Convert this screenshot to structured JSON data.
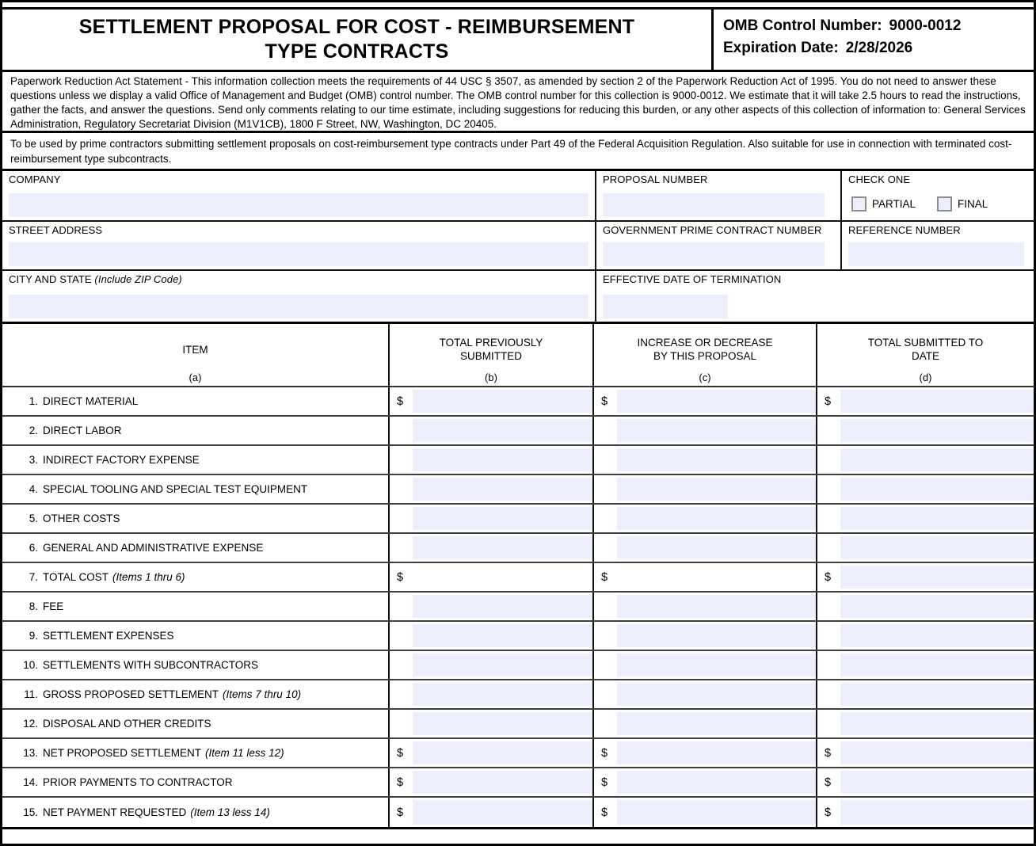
{
  "header": {
    "title": "SETTLEMENT PROPOSAL FOR COST - REIMBURSEMENT\nTYPE CONTRACTS",
    "omb_control_label": "OMB Control Number:",
    "omb_control_value": "9000-0012",
    "expiration_label": "Expiration Date:",
    "expiration_value": "2/28/2026"
  },
  "notices": {
    "paperwork_statement": "Paperwork Reduction Act Statement - This information collection meets the requirements of 44 USC § 3507, as amended by section 2 of the Paperwork Reduction Act of 1995.  You do not need to answer these questions unless we display a valid Office of Management and Budget (OMB) control number.  The OMB control number for this collection is 9000-0012.  We estimate that it will take 2.5 hours to read the instructions, gather the facts, and answer the questions.  Send only comments relating to our time estimate, including suggestions for reducing this burden, or any other aspects of this collection of information to:  General Services Administration, Regulatory Secretariat Division (M1V1CB), 1800 F Street, NW, Washington, DC  20405.",
    "usage_statement": "To be used by prime contractors submitting settlement proposals on cost-reimbursement type contracts under Part 49 of the Federal Acquisition Regulation.  Also suitable for use in connection with terminated cost-reimbursement type subcontracts."
  },
  "fields": {
    "company_label": "COMPANY",
    "company_value": "",
    "proposal_number_label": "PROPOSAL NUMBER",
    "proposal_number_value": "",
    "check_one": {
      "label": "CHECK ONE",
      "partial_label": "PARTIAL",
      "partial_checked": false,
      "final_label": "FINAL",
      "final_checked": false
    },
    "street_address_label": "STREET ADDRESS",
    "street_address_value": "",
    "gov_prime_contract_label": "GOVERNMENT PRIME CONTRACT NUMBER",
    "gov_prime_contract_value": "",
    "reference_number_label": "REFERENCE NUMBER",
    "reference_number_value": "",
    "city_state_label": "CITY AND STATE ",
    "city_state_note": "(Include ZIP Code)",
    "city_state_value": "",
    "effective_date_label": "EFFECTIVE DATE OF TERMINATION",
    "effective_date_value": ""
  },
  "table": {
    "dollar_sign": "$",
    "header": {
      "col_a_title": "ITEM",
      "col_a_sub": "(a)",
      "col_b_title": "TOTAL PREVIOUSLY\nSUBMITTED",
      "col_b_sub": "(b)",
      "col_c_title": "INCREASE OR DECREASE\nBY THIS PROPOSAL",
      "col_c_sub": "(c)",
      "col_d_title": "TOTAL SUBMITTED TO\nDATE",
      "col_d_sub": "(d)"
    },
    "rows": [
      {
        "num": "1.",
        "label": "DIRECT MATERIAL",
        "note": "",
        "dollar": true,
        "fills": [
          true,
          true,
          true
        ],
        "values": [
          "",
          "",
          ""
        ]
      },
      {
        "num": "2.",
        "label": "DIRECT LABOR",
        "note": "",
        "dollar": false,
        "fills": [
          true,
          true,
          true
        ],
        "values": [
          "",
          "",
          ""
        ]
      },
      {
        "num": "3.",
        "label": "INDIRECT FACTORY EXPENSE",
        "note": "",
        "dollar": false,
        "fills": [
          true,
          true,
          true
        ],
        "values": [
          "",
          "",
          ""
        ]
      },
      {
        "num": "4.",
        "label": "SPECIAL TOOLING AND SPECIAL TEST EQUIPMENT",
        "note": "",
        "dollar": false,
        "fills": [
          true,
          true,
          true
        ],
        "values": [
          "",
          "",
          ""
        ]
      },
      {
        "num": "5.",
        "label": "OTHER COSTS",
        "note": "",
        "dollar": false,
        "fills": [
          true,
          true,
          true
        ],
        "values": [
          "",
          "",
          ""
        ]
      },
      {
        "num": "6.",
        "label": "GENERAL AND ADMINISTRATIVE EXPENSE",
        "note": "",
        "dollar": false,
        "fills": [
          true,
          true,
          true
        ],
        "values": [
          "",
          "",
          ""
        ]
      },
      {
        "num": "7.",
        "label": "TOTAL COST",
        "note": "(Items 1 thru 6)",
        "dollar": true,
        "fills": [
          false,
          false,
          true
        ],
        "values": [
          "",
          "",
          ""
        ]
      },
      {
        "num": "8.",
        "label": "FEE",
        "note": "",
        "dollar": false,
        "fills": [
          true,
          true,
          true
        ],
        "values": [
          "",
          "",
          ""
        ]
      },
      {
        "num": "9.",
        "label": "SETTLEMENT EXPENSES",
        "note": "",
        "dollar": false,
        "fills": [
          true,
          true,
          true
        ],
        "values": [
          "",
          "",
          ""
        ]
      },
      {
        "num": "10.",
        "label": "SETTLEMENTS WITH SUBCONTRACTORS",
        "note": "",
        "dollar": false,
        "fills": [
          true,
          true,
          true
        ],
        "values": [
          "",
          "",
          ""
        ]
      },
      {
        "num": "11.",
        "label": "GROSS PROPOSED SETTLEMENT",
        "note": "(Items 7 thru 10)",
        "dollar": false,
        "fills": [
          true,
          true,
          true
        ],
        "values": [
          "",
          "",
          ""
        ]
      },
      {
        "num": "12.",
        "label": "DISPOSAL AND OTHER CREDITS",
        "note": "",
        "dollar": false,
        "fills": [
          true,
          true,
          true
        ],
        "values": [
          "",
          "",
          ""
        ]
      },
      {
        "num": "13.",
        "label": "NET PROPOSED SETTLEMENT",
        "note": "(Item 11 less 12)",
        "dollar": true,
        "fills": [
          true,
          true,
          true
        ],
        "values": [
          "",
          "",
          ""
        ]
      },
      {
        "num": "14.",
        "label": "PRIOR PAYMENTS TO CONTRACTOR",
        "note": "",
        "dollar": true,
        "fills": [
          true,
          true,
          true
        ],
        "values": [
          "",
          "",
          ""
        ]
      },
      {
        "num": "15.",
        "label": "NET PAYMENT REQUESTED",
        "note": "(Item 13 less 14)",
        "dollar": true,
        "fills": [
          true,
          true,
          true
        ],
        "values": [
          "",
          "",
          ""
        ]
      }
    ]
  },
  "colors": {
    "field_bg": "#eceffb",
    "border": "#000000",
    "checkbox_border": "#8e8e8e"
  }
}
